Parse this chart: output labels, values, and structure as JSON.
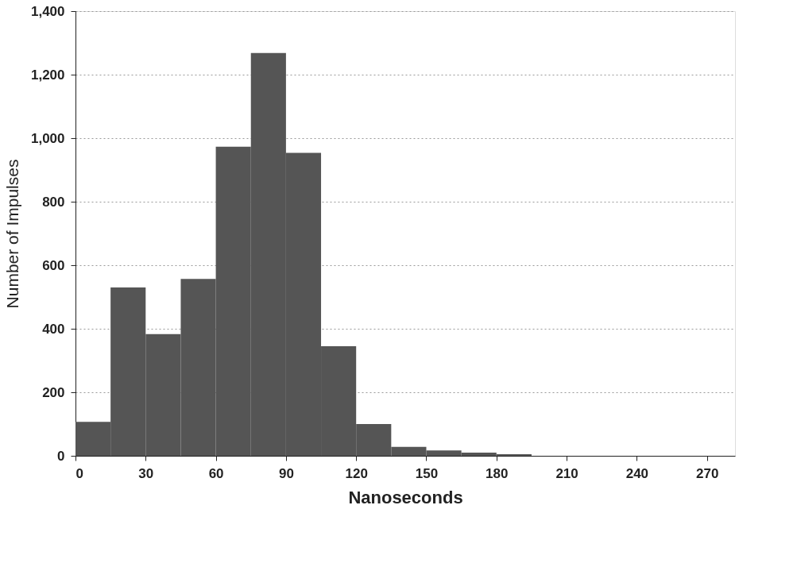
{
  "chart_data": {
    "type": "histogram",
    "xlabel": "Nanoseconds",
    "ylabel": "Number of Impulses",
    "bins": [
      0,
      15,
      30,
      45,
      60,
      75,
      90,
      105,
      120,
      135,
      150,
      165,
      180,
      195
    ],
    "values": [
      107,
      530,
      383,
      557,
      973,
      1268,
      954,
      345,
      100,
      28,
      17,
      10,
      5
    ],
    "color": "#555555",
    "xlim": [
      0,
      282
    ],
    "xticks": [
      0,
      30,
      60,
      90,
      120,
      150,
      180,
      210,
      240,
      270
    ],
    "ylim": [
      0,
      1400
    ],
    "yticks": [
      0,
      {
        "value": 200,
        "label": "200"
      },
      {
        "value": 400,
        "label": "400"
      },
      {
        "value": 600,
        "label": "600"
      },
      {
        "value": 800,
        "label": "800"
      },
      {
        "value": 1000,
        "label": "1,000"
      },
      {
        "value": 1200,
        "label": "1,200"
      },
      {
        "value": 1400,
        "label": "1,400"
      }
    ],
    "grid": "y"
  }
}
